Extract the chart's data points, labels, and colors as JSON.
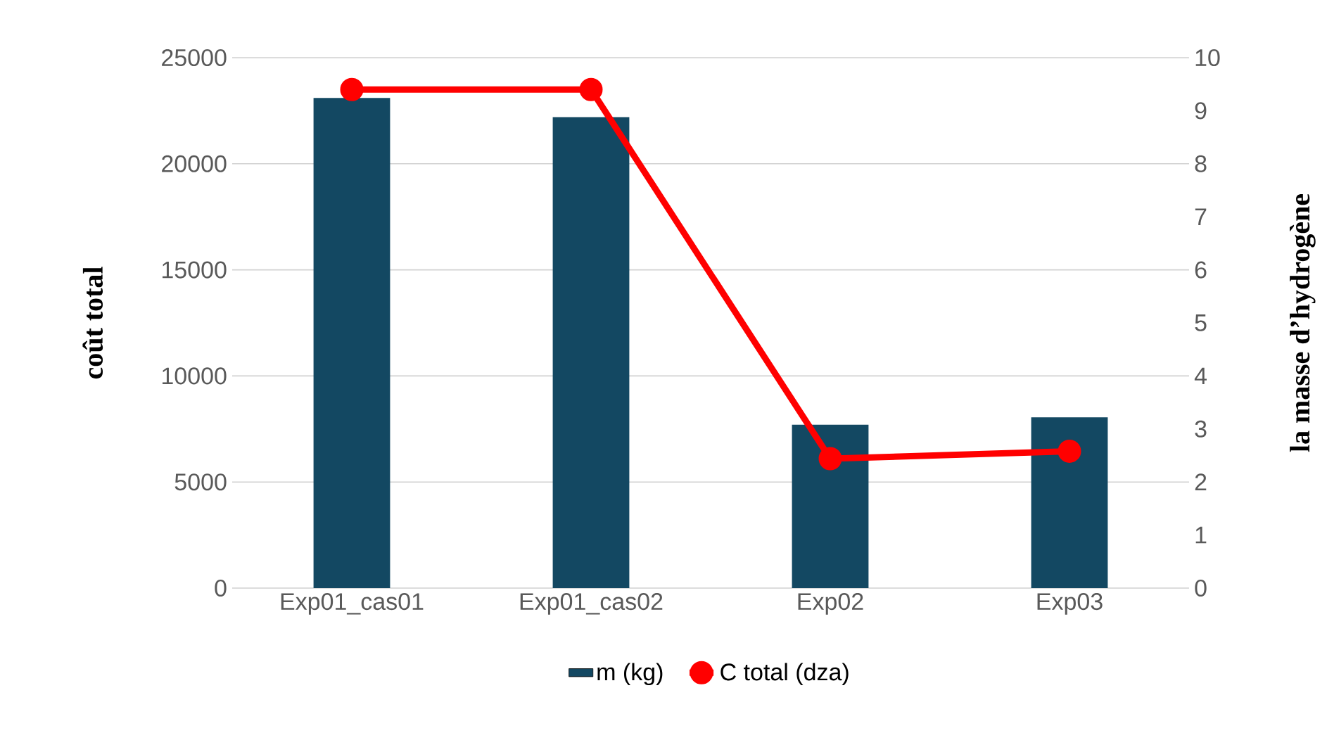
{
  "chart_data": {
    "type": "bar",
    "categories": [
      "Exp01_cas01",
      "Exp01_cas02",
      "Exp02",
      "Exp03"
    ],
    "ylabel": "coût total",
    "y2label": "la masse d’hydrogène",
    "ylim": [
      0,
      25000
    ],
    "yticks": [
      0,
      5000,
      10000,
      15000,
      20000,
      25000
    ],
    "y2lim": [
      0,
      10
    ],
    "y2ticks": [
      0,
      1,
      2,
      3,
      4,
      5,
      6,
      7,
      8,
      9,
      10
    ],
    "series": [
      {
        "name": "m (kg)",
        "color": "#134862",
        "values": [
          23100,
          22200,
          7700,
          8050
        ]
      },
      {
        "name": "C total (dza)",
        "type": "line",
        "axis": "y2",
        "color": "#ff0000",
        "marker": "circle",
        "values": [
          9.4,
          9.4,
          2.44,
          2.58
        ]
      }
    ],
    "grid": "y",
    "legend": "bottom"
  }
}
